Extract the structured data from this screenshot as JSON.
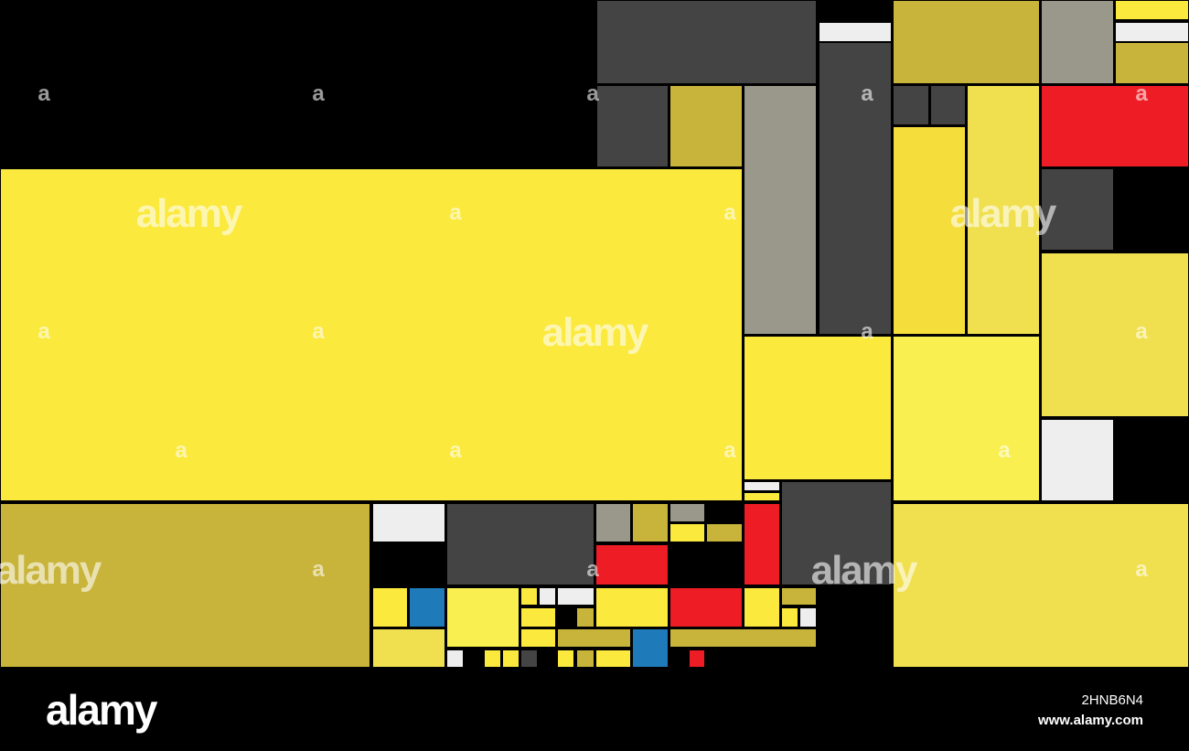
{
  "watermark": {
    "logo": "alamy",
    "mark": "a"
  },
  "footer": {
    "logo": "alamy",
    "image_id": "2HNB6N4",
    "url": "www.alamy.com"
  }
}
